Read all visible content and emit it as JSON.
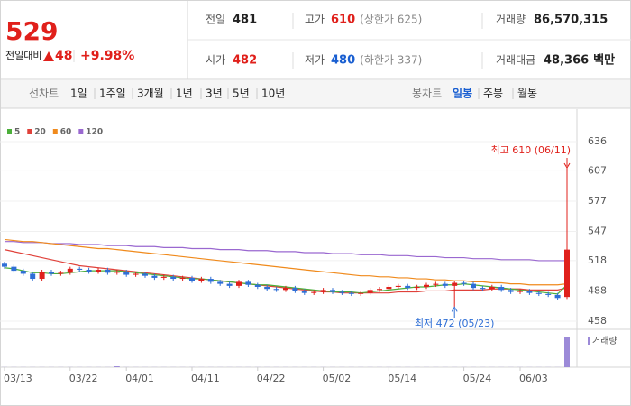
{
  "header": {
    "price": "529",
    "change_label": "전일대비",
    "change": "48",
    "change_pct": "+9.98%",
    "stats": [
      {
        "label": "전일",
        "value": "481",
        "color": "#222222"
      },
      {
        "label": "고가",
        "value": "610",
        "note": "(상한가 625)",
        "color": "#e0201b"
      },
      {
        "label": "거래량",
        "value": "86,570,315",
        "color": "#222222"
      },
      {
        "label": "시가",
        "value": "482",
        "color": "#e0201b"
      },
      {
        "label": "저가",
        "value": "480",
        "note": "(하한가 337)",
        "color": "#1a5fd1"
      },
      {
        "label": "거래대금",
        "value": "48,366",
        "unit": "백만",
        "color": "#222222"
      }
    ]
  },
  "tabs": {
    "line_label": "선차트",
    "periods": [
      "1일",
      "1주일",
      "3개월",
      "1년",
      "3년",
      "5년",
      "10년"
    ],
    "candle_label": "봉차트",
    "candles": [
      "일봉",
      "주봉",
      "월봉"
    ],
    "selected_candle": 0
  },
  "chart_data": {
    "type": "candlestick",
    "categories": [
      "03/13",
      null,
      null,
      null,
      null,
      null,
      null,
      "03/22",
      null,
      null,
      null,
      null,
      null,
      "04/01",
      null,
      null,
      null,
      null,
      null,
      null,
      "04/11",
      null,
      null,
      null,
      null,
      null,
      null,
      "04/22",
      null,
      null,
      null,
      null,
      null,
      null,
      "05/02",
      null,
      null,
      null,
      null,
      null,
      null,
      "05/14",
      null,
      null,
      null,
      null,
      null,
      null,
      null,
      "05/24",
      null,
      null,
      null,
      null,
      null,
      "06/03",
      null,
      null,
      null,
      null,
      null
    ],
    "open": [
      515,
      512,
      508,
      505,
      500,
      507,
      505,
      506,
      510,
      509,
      507,
      509,
      506,
      507,
      504,
      505,
      503,
      501,
      502,
      500,
      501,
      498,
      500,
      497,
      495,
      493,
      497,
      494,
      492,
      490,
      489,
      491,
      488,
      486,
      487,
      489,
      487,
      486,
      485,
      486,
      489,
      490,
      492,
      493,
      491,
      492,
      494,
      495,
      493,
      496,
      495,
      491,
      490,
      492,
      489,
      487,
      488,
      486,
      485,
      484,
      482
    ],
    "high": [
      517,
      514,
      510,
      507,
      509,
      509,
      508,
      512,
      512,
      511,
      511,
      511,
      509,
      509,
      507,
      507,
      505,
      504,
      504,
      503,
      503,
      502,
      502,
      499,
      497,
      499,
      499,
      496,
      494,
      492,
      493,
      493,
      490,
      489,
      491,
      491,
      489,
      488,
      488,
      491,
      492,
      494,
      495,
      495,
      494,
      496,
      497,
      497,
      498,
      498,
      497,
      493,
      494,
      494,
      491,
      490,
      490,
      488,
      487,
      486,
      610
    ],
    "low": [
      510,
      506,
      503,
      498,
      498,
      503,
      503,
      504,
      507,
      505,
      505,
      504,
      504,
      502,
      502,
      501,
      499,
      499,
      498,
      498,
      496,
      496,
      495,
      493,
      491,
      491,
      492,
      490,
      488,
      487,
      487,
      486,
      484,
      484,
      485,
      485,
      484,
      483,
      483,
      484,
      487,
      488,
      490,
      489,
      489,
      490,
      492,
      491,
      472,
      493,
      489,
      488,
      488,
      487,
      485,
      485,
      484,
      483,
      482,
      479,
      480
    ],
    "close": [
      512,
      508,
      505,
      500,
      507,
      505,
      506,
      510,
      509,
      507,
      509,
      506,
      507,
      504,
      505,
      503,
      501,
      502,
      500,
      501,
      498,
      500,
      497,
      495,
      493,
      497,
      494,
      492,
      490,
      489,
      491,
      488,
      486,
      487,
      489,
      487,
      486,
      485,
      486,
      489,
      490,
      492,
      493,
      491,
      492,
      494,
      495,
      493,
      496,
      495,
      491,
      490,
      492,
      489,
      487,
      488,
      486,
      485,
      484,
      481,
      529
    ],
    "up_color": "#e0201b",
    "down_color": "#2f6fd6",
    "series": [
      {
        "name": "5",
        "color": "#4caf3a",
        "values": [
          511,
          510,
          508,
          506,
          506,
          505,
          505,
          506,
          507,
          508,
          508,
          508,
          508,
          507,
          506,
          505,
          504,
          503,
          502,
          501,
          500,
          500,
          499,
          498,
          497,
          496,
          495,
          494,
          494,
          493,
          492,
          491,
          490,
          489,
          488,
          487,
          487,
          487,
          486,
          487,
          488,
          489,
          490,
          491,
          492,
          492,
          493,
          494,
          494,
          495,
          494,
          493,
          492,
          491,
          490,
          489,
          488,
          487,
          486,
          485,
          494
        ]
      },
      {
        "name": "20",
        "color": "#e0413a",
        "values": [
          529,
          527,
          525,
          523,
          521,
          519,
          517,
          515,
          513,
          512,
          511,
          510,
          509,
          508,
          507,
          506,
          505,
          504,
          503,
          502,
          501,
          500,
          499,
          498,
          497,
          496,
          495,
          494,
          493,
          492,
          491,
          490,
          489,
          488,
          487,
          487,
          486,
          486,
          486,
          486,
          486,
          486,
          487,
          487,
          487,
          488,
          488,
          488,
          489,
          489,
          489,
          489,
          490,
          490,
          490,
          490,
          489,
          489,
          489,
          489,
          491
        ]
      },
      {
        "name": "60",
        "color": "#f08a1c",
        "values": [
          539,
          538,
          537,
          537,
          536,
          535,
          534,
          533,
          532,
          531,
          530,
          530,
          529,
          528,
          527,
          526,
          525,
          524,
          523,
          522,
          521,
          520,
          519,
          518,
          517,
          516,
          515,
          514,
          513,
          512,
          511,
          510,
          509,
          508,
          507,
          506,
          505,
          504,
          503,
          503,
          502,
          502,
          501,
          501,
          500,
          500,
          499,
          499,
          498,
          498,
          497,
          497,
          496,
          496,
          495,
          495,
          494,
          494,
          494,
          494,
          495
        ]
      },
      {
        "name": "120",
        "color": "#9a68d0",
        "values": [
          537,
          537,
          536,
          536,
          536,
          535,
          535,
          535,
          534,
          534,
          534,
          533,
          533,
          533,
          532,
          532,
          532,
          531,
          531,
          531,
          530,
          530,
          530,
          529,
          529,
          529,
          528,
          528,
          528,
          527,
          527,
          527,
          526,
          526,
          526,
          525,
          525,
          525,
          524,
          524,
          524,
          523,
          523,
          523,
          522,
          522,
          522,
          521,
          521,
          521,
          520,
          520,
          520,
          519,
          519,
          519,
          519,
          518,
          518,
          518,
          518
        ]
      }
    ],
    "ylim": [
      458,
      636
    ],
    "yticks": [
      636,
      607,
      577,
      547,
      518,
      488,
      458
    ],
    "grid": true,
    "volume_label": "거래량",
    "volume_color": "#9c8ad8",
    "volume_lim": [
      0,
      90000000
    ],
    "volume": [
      300000,
      300000,
      300000,
      300000,
      300000,
      300000,
      300000,
      300000,
      300000,
      300000,
      300000,
      300000,
      2500000,
      300000,
      300000,
      300000,
      300000,
      300000,
      300000,
      300000,
      300000,
      300000,
      300000,
      300000,
      300000,
      300000,
      300000,
      300000,
      300000,
      300000,
      300000,
      300000,
      300000,
      300000,
      300000,
      300000,
      300000,
      300000,
      300000,
      300000,
      300000,
      300000,
      300000,
      300000,
      300000,
      300000,
      300000,
      300000,
      300000,
      300000,
      300000,
      300000,
      300000,
      300000,
      300000,
      300000,
      300000,
      300000,
      300000,
      300000,
      86570315
    ],
    "high_annotation": "최고 610 (06/11)",
    "low_annotation": "최저 472 (05/23)"
  }
}
